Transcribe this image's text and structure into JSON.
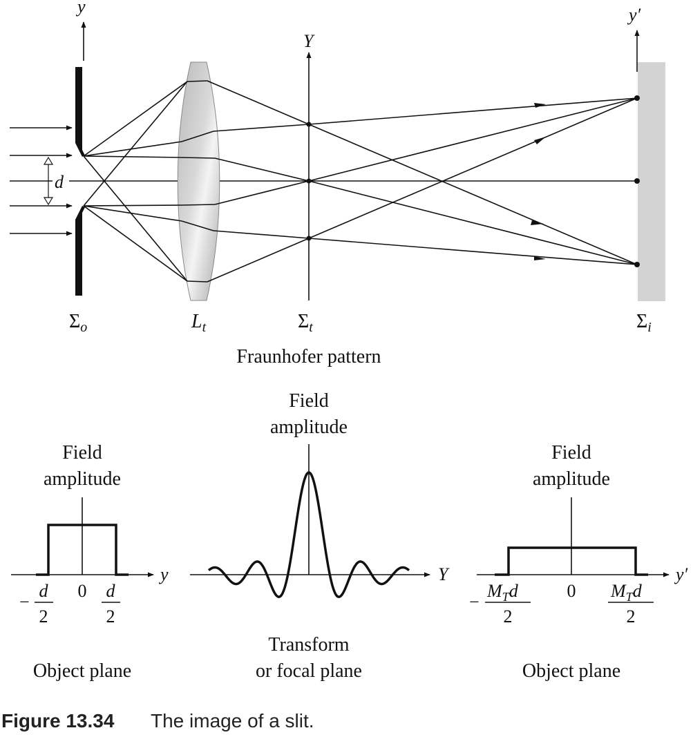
{
  "labels": {
    "top_y": "y",
    "top_Y": "Y",
    "top_yprime": "y′",
    "d": "d",
    "sigma": "Σ",
    "sigma_o_sub": "o",
    "lens": "L",
    "lens_sub": "t",
    "sigma_t_sub": "t",
    "sigma_i_sub": "i",
    "fraunhofer": "Fraunhofer pattern"
  },
  "plots": {
    "left": {
      "title_line1": "Field",
      "title_line2": "amplitude",
      "axis": "y",
      "tick_minus_sign": "−",
      "tick_num": "d",
      "tick_den": "2",
      "tick_zero": "0",
      "caption": "Object plane"
    },
    "middle": {
      "title_line1": "Field",
      "title_line2": "amplitude",
      "axis": "Y",
      "caption_line1": "Transform",
      "caption_line2": "or focal plane"
    },
    "right": {
      "title_line1": "Field",
      "title_line2": "amplitude",
      "axis": "y′",
      "tick_minus_sign": "−",
      "tick_M": "M",
      "tick_T": "T",
      "tick_d": "d",
      "tick_den": "2",
      "tick_zero": "0",
      "caption": "Object plane"
    }
  },
  "caption": {
    "label": "Figure 13.34",
    "text": "The image of a slit."
  }
}
